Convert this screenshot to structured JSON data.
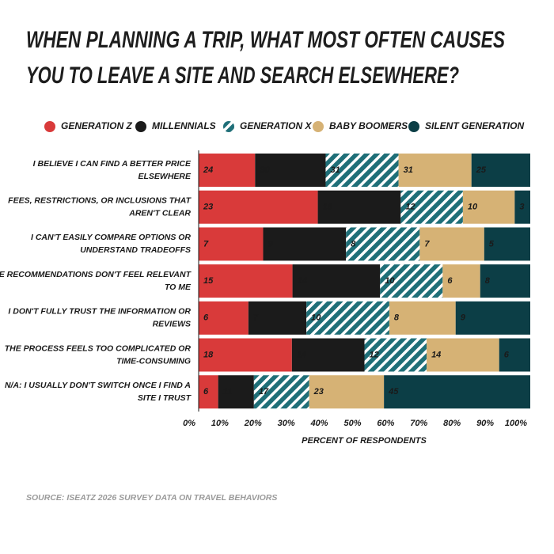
{
  "chart_data": {
    "type": "bar",
    "orientation": "horizontal",
    "stack": "percent",
    "title": [
      "WHEN PLANNING A TRIP, WHAT MOST OFTEN CAUSES",
      "YOU TO LEAVE A SITE AND SEARCH ELSEWHERE?"
    ],
    "xlabel": "PERCENT OF RESPONDENTS",
    "source": "SOURCE: ISEATZ 2026 SURVEY DATA ON TRAVEL BEHAVIORS",
    "categories": [
      [
        "I BELIEVE I CAN FIND A BETTER PRICE",
        "ELSEWHERE"
      ],
      [
        "FEES, RESTRICTIONS, OR INCLUSIONS THAT",
        "AREN'T CLEAR"
      ],
      [
        "I CAN'T EASILY COMPARE OPTIONS OR",
        "UNDERSTAND TRADEOFFS"
      ],
      [
        "THE RECOMMENDATIONS DON'T FEEL RELEVANT",
        "TO ME"
      ],
      [
        "I DON'T FULLY TRUST THE INFORMATION OR",
        "REVIEWS"
      ],
      [
        "THE PROCESS FEELS TOO COMPLICATED OR",
        "TIME-CONSUMING"
      ],
      [
        "N/A: I USUALLY DON'T SWITCH ONCE I FIND A",
        "SITE I TRUST"
      ]
    ],
    "series": [
      {
        "name": "GENERATION Z",
        "color": "#d93a3a",
        "label_color": "#ffffff",
        "values": [
          24,
          23,
          7,
          15,
          6,
          18,
          6
        ]
      },
      {
        "name": "MILLENNIALS",
        "color": "#1b1b1b",
        "label_color": "#ffffff",
        "values": [
          30,
          16,
          9,
          14,
          7,
          14,
          11
        ]
      },
      {
        "name": "GENERATION X",
        "color": "#1f6f78",
        "pattern": "hatch",
        "label_color": "#ffffff",
        "values": [
          31,
          12,
          8,
          10,
          10,
          12,
          17
        ]
      },
      {
        "name": "BABY BOOMERS",
        "color": "#d6b275",
        "label_color": "#1b1b1b",
        "values": [
          31,
          10,
          7,
          6,
          8,
          14,
          23
        ]
      },
      {
        "name": "SILENT GENERATION",
        "color": "#0c3e46",
        "label_color": "#ffffff",
        "values": [
          25,
          3,
          5,
          8,
          9,
          6,
          45
        ]
      }
    ],
    "xlim": [
      0,
      100
    ],
    "xticks": [
      {
        "value": 0,
        "label": "0%"
      },
      {
        "value": 10,
        "label": "10%"
      },
      {
        "value": 20,
        "label": "20%"
      },
      {
        "value": 30,
        "label": "30%"
      },
      {
        "value": 40,
        "label": "40%"
      },
      {
        "value": 50,
        "label": "50%"
      },
      {
        "value": 60,
        "label": "60%"
      },
      {
        "value": 70,
        "label": "70%"
      },
      {
        "value": 80,
        "label": "80%"
      },
      {
        "value": 90,
        "label": "90%"
      },
      {
        "value": 100,
        "label": "100%"
      }
    ],
    "legend": "top"
  }
}
